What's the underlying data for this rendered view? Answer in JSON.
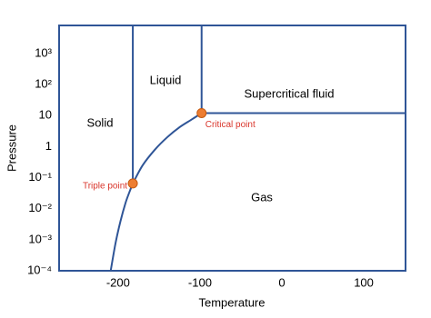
{
  "chart_data": {
    "type": "phase",
    "x_label": "Temperature",
    "y_label": "Pressure",
    "xlim": [
      -272,
      151
    ],
    "xticks": [
      -200,
      -100,
      0,
      100
    ],
    "ylim": [
      0.0001,
      8000
    ],
    "y_log": true,
    "yticks": [
      {
        "value": 0.0001,
        "label": "10⁻⁴"
      },
      {
        "value": 0.001,
        "label": "10⁻³"
      },
      {
        "value": 0.01,
        "label": "10⁻²"
      },
      {
        "value": 0.1,
        "label": "10⁻¹"
      },
      1,
      10,
      {
        "value": 100,
        "label": "10²"
      },
      {
        "value": 1000,
        "label": "10³"
      }
    ],
    "grid": false,
    "line_color": "#2f5597",
    "regions": [
      "Solid",
      "Liquid",
      "Supercritical fluid",
      "Gas"
    ],
    "series": [
      {
        "x": [
          -209,
          -203,
          -197,
          -191,
          -186,
          -182
        ],
        "values": [
          0.0001,
          0.0008,
          0.004,
          0.015,
          0.035,
          0.065
        ]
      },
      {
        "x": [
          -182,
          -170,
          -155,
          -140,
          -125,
          -110,
          -98
        ],
        "values": [
          0.065,
          0.25,
          0.8,
          2,
          4.2,
          7.5,
          12
        ]
      },
      {
        "x": [
          -182,
          -182
        ],
        "values": [
          0.065,
          8000
        ]
      },
      {
        "x": [
          -98,
          -98
        ],
        "values": [
          12,
          8000
        ]
      },
      {
        "x": [
          -98,
          151
        ],
        "values": [
          12,
          12
        ]
      }
    ],
    "points": [
      {
        "label": "Triple point",
        "x": -182,
        "y": 0.065
      },
      {
        "label": "Critical point",
        "x": -98,
        "y": 12
      }
    ],
    "point_color": "#ed7d31"
  }
}
